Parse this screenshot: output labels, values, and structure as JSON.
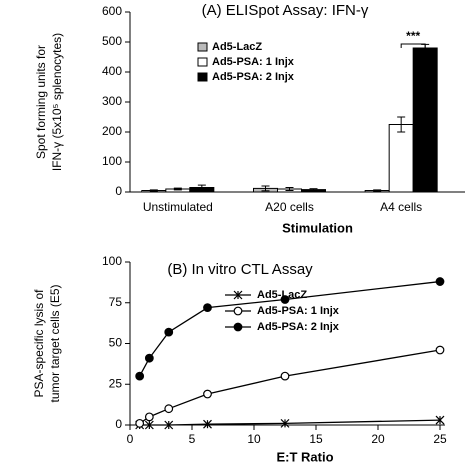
{
  "chart_data": [
    {
      "type": "bar",
      "title": "(A) ELISpot Assay: IFN-γ",
      "ylabel": [
        "Spot forming units for",
        "IFN-γ (5x10⁵ splenocytes)"
      ],
      "xlabel": "Stimulation",
      "categories": [
        "Unstimulated",
        "A20 cells",
        "A4 cells"
      ],
      "series": [
        {
          "name": "Ad5-LacZ",
          "color": "#bbbbbb",
          "values": [
            5,
            12,
            5
          ],
          "errors": [
            2,
            8,
            2
          ]
        },
        {
          "name": "Ad5-PSA: 1 Injx",
          "color": "#ffffff",
          "values": [
            10,
            10,
            225
          ],
          "errors": [
            3,
            5,
            25
          ]
        },
        {
          "name": "Ad5-PSA: 2 Injx",
          "color": "#000000",
          "values": [
            15,
            8,
            480
          ],
          "errors": [
            8,
            3,
            12
          ]
        }
      ],
      "ylim": [
        0,
        600
      ],
      "yticks": [
        0,
        100,
        200,
        300,
        400,
        500,
        600
      ],
      "legend": "upper left",
      "annotation": "***"
    },
    {
      "type": "line",
      "title": "(B) In vitro CTL Assay",
      "ylabel": [
        "PSA-specific lysis of",
        "tumor target cells (E5)"
      ],
      "xlabel": "E:T Ratio",
      "x": [
        0.78,
        1.56,
        3.125,
        6.25,
        12.5,
        25
      ],
      "series": [
        {
          "name": "Ad5-LacZ",
          "color": "#000000",
          "marker": "star",
          "values": [
            0,
            0,
            0,
            0.5,
            1,
            3
          ]
        },
        {
          "name": "Ad5-PSA: 1 Injx",
          "color": "#000000",
          "marker": "open-circle",
          "values": [
            1,
            5,
            10,
            19,
            30,
            46
          ]
        },
        {
          "name": "Ad5-PSA: 2 Injx",
          "color": "#000000",
          "marker": "filled-circle",
          "values": [
            30,
            41,
            57,
            72,
            77,
            88
          ]
        }
      ],
      "xlim": [
        0,
        25
      ],
      "xticks": [
        0,
        5,
        10,
        15,
        20,
        25
      ],
      "ylim": [
        0,
        100
      ],
      "yticks": [
        0,
        25,
        50,
        75,
        100
      ],
      "legend": "upper center"
    }
  ]
}
